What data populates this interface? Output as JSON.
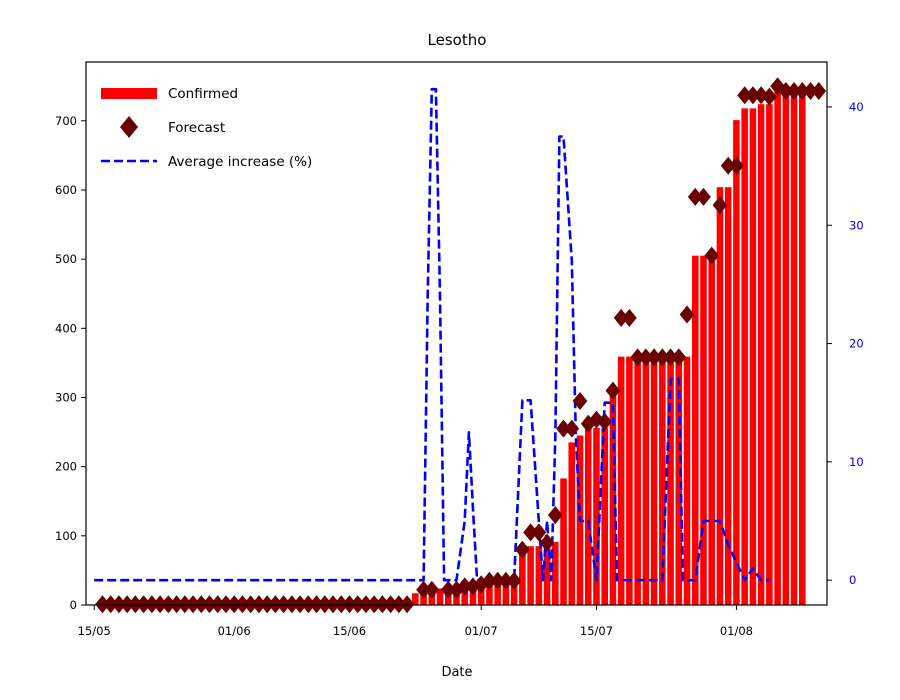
{
  "chart_data": {
    "type": "bar",
    "title": "Lesotho",
    "xlabel": "Date",
    "ylabel": "",
    "y2label": "",
    "x_ticks": [
      {
        "date": "2020-05-15",
        "label": "15/05"
      },
      {
        "date": "2020-06-01",
        "label": "01/06"
      },
      {
        "date": "2020-06-15",
        "label": "15/06"
      },
      {
        "date": "2020-07-01",
        "label": "01/07"
      },
      {
        "date": "2020-07-15",
        "label": "15/07"
      },
      {
        "date": "2020-08-01",
        "label": "01/08"
      }
    ],
    "xlim": [
      "2020-05-14",
      "2020-08-12"
    ],
    "ylim": [
      0,
      785
    ],
    "y_ticks": [
      0,
      100,
      200,
      300,
      400,
      500,
      600,
      700
    ],
    "y2lim": [
      -2.1,
      43.8
    ],
    "y2_ticks": [
      0,
      10,
      20,
      30,
      40
    ],
    "legend_position": "top-left",
    "colors": {
      "confirmed": "#ff0000",
      "forecast": "#6b0000",
      "average": "#0000ff",
      "right_axis": "#0000ff"
    },
    "legend": [
      {
        "label": "Confirmed",
        "style": "bar"
      },
      {
        "label": "Forecast",
        "style": "diamond"
      },
      {
        "label": "Average increase (%)",
        "style": "dashed-line"
      }
    ],
    "series": [
      {
        "name": "Confirmed",
        "type": "bar",
        "axis": "left",
        "data": [
          [
            "2020-05-16",
            1
          ],
          [
            "2020-05-17",
            1
          ],
          [
            "2020-05-18",
            1
          ],
          [
            "2020-05-19",
            1
          ],
          [
            "2020-05-20",
            1
          ],
          [
            "2020-05-21",
            1
          ],
          [
            "2020-05-22",
            1
          ],
          [
            "2020-05-23",
            1
          ],
          [
            "2020-05-24",
            1
          ],
          [
            "2020-05-25",
            1
          ],
          [
            "2020-05-26",
            1
          ],
          [
            "2020-05-27",
            1
          ],
          [
            "2020-05-28",
            1
          ],
          [
            "2020-05-29",
            1
          ],
          [
            "2020-05-30",
            1
          ],
          [
            "2020-05-31",
            1
          ],
          [
            "2020-06-01",
            1
          ],
          [
            "2020-06-02",
            1
          ],
          [
            "2020-06-03",
            2
          ],
          [
            "2020-06-04",
            2
          ],
          [
            "2020-06-05",
            2
          ],
          [
            "2020-06-06",
            2
          ],
          [
            "2020-06-07",
            2
          ],
          [
            "2020-06-08",
            2
          ],
          [
            "2020-06-09",
            2
          ],
          [
            "2020-06-10",
            2
          ],
          [
            "2020-06-11",
            2
          ],
          [
            "2020-06-12",
            2
          ],
          [
            "2020-06-13",
            2
          ],
          [
            "2020-06-14",
            4
          ],
          [
            "2020-06-15",
            4
          ],
          [
            "2020-06-16",
            4
          ],
          [
            "2020-06-17",
            4
          ],
          [
            "2020-06-18",
            4
          ],
          [
            "2020-06-19",
            4
          ],
          [
            "2020-06-20",
            4
          ],
          [
            "2020-06-21",
            4
          ],
          [
            "2020-06-22",
            4
          ],
          [
            "2020-06-23",
            17
          ],
          [
            "2020-06-24",
            17
          ],
          [
            "2020-06-25",
            17
          ],
          [
            "2020-06-26",
            24
          ],
          [
            "2020-06-27",
            24
          ],
          [
            "2020-06-28",
            27
          ],
          [
            "2020-06-29",
            27
          ],
          [
            "2020-06-30",
            27
          ],
          [
            "2020-07-01",
            27
          ],
          [
            "2020-07-02",
            35
          ],
          [
            "2020-07-03",
            35
          ],
          [
            "2020-07-04",
            35
          ],
          [
            "2020-07-05",
            35
          ],
          [
            "2020-07-06",
            85
          ],
          [
            "2020-07-07",
            85
          ],
          [
            "2020-07-08",
            85
          ],
          [
            "2020-07-09",
            91
          ],
          [
            "2020-07-10",
            91
          ],
          [
            "2020-07-11",
            183
          ],
          [
            "2020-07-12",
            235
          ],
          [
            "2020-07-13",
            245
          ],
          [
            "2020-07-14",
            256
          ],
          [
            "2020-07-15",
            256
          ],
          [
            "2020-07-16",
            256
          ],
          [
            "2020-07-17",
            310
          ],
          [
            "2020-07-18",
            359
          ],
          [
            "2020-07-19",
            359
          ],
          [
            "2020-07-20",
            359
          ],
          [
            "2020-07-21",
            359
          ],
          [
            "2020-07-22",
            359
          ],
          [
            "2020-07-23",
            359
          ],
          [
            "2020-07-24",
            359
          ],
          [
            "2020-07-25",
            359
          ],
          [
            "2020-07-26",
            359
          ],
          [
            "2020-07-27",
            505
          ],
          [
            "2020-07-28",
            505
          ],
          [
            "2020-07-29",
            505
          ],
          [
            "2020-07-30",
            604
          ],
          [
            "2020-07-31",
            604
          ],
          [
            "2020-08-01",
            701
          ],
          [
            "2020-08-02",
            718
          ],
          [
            "2020-08-03",
            718
          ],
          [
            "2020-08-04",
            724
          ],
          [
            "2020-08-05",
            724
          ],
          [
            "2020-08-06",
            742
          ],
          [
            "2020-08-07",
            742
          ],
          [
            "2020-08-08",
            742
          ],
          [
            "2020-08-09",
            742
          ]
        ]
      },
      {
        "name": "Forecast",
        "type": "scatter",
        "marker": "diamond",
        "axis": "left",
        "data": [
          [
            "2020-05-16",
            1
          ],
          [
            "2020-05-17",
            1
          ],
          [
            "2020-05-18",
            1
          ],
          [
            "2020-05-19",
            1
          ],
          [
            "2020-05-20",
            1
          ],
          [
            "2020-05-21",
            1
          ],
          [
            "2020-05-22",
            1
          ],
          [
            "2020-05-23",
            1
          ],
          [
            "2020-05-24",
            1
          ],
          [
            "2020-05-25",
            1
          ],
          [
            "2020-05-26",
            1
          ],
          [
            "2020-05-27",
            1
          ],
          [
            "2020-05-28",
            1
          ],
          [
            "2020-05-29",
            1
          ],
          [
            "2020-05-30",
            1
          ],
          [
            "2020-05-31",
            1
          ],
          [
            "2020-06-01",
            1
          ],
          [
            "2020-06-02",
            1
          ],
          [
            "2020-06-03",
            1
          ],
          [
            "2020-06-04",
            1
          ],
          [
            "2020-06-05",
            1
          ],
          [
            "2020-06-06",
            1
          ],
          [
            "2020-06-07",
            1
          ],
          [
            "2020-06-08",
            1
          ],
          [
            "2020-06-09",
            1
          ],
          [
            "2020-06-10",
            1
          ],
          [
            "2020-06-11",
            1
          ],
          [
            "2020-06-12",
            1
          ],
          [
            "2020-06-13",
            1
          ],
          [
            "2020-06-14",
            1
          ],
          [
            "2020-06-15",
            1
          ],
          [
            "2020-06-16",
            1
          ],
          [
            "2020-06-17",
            1
          ],
          [
            "2020-06-18",
            1
          ],
          [
            "2020-06-19",
            1
          ],
          [
            "2020-06-20",
            1
          ],
          [
            "2020-06-21",
            1
          ],
          [
            "2020-06-22",
            1
          ],
          [
            "2020-06-24",
            22
          ],
          [
            "2020-06-25",
            22
          ],
          [
            "2020-06-27",
            22
          ],
          [
            "2020-06-28",
            22
          ],
          [
            "2020-06-29",
            27
          ],
          [
            "2020-06-30",
            27
          ],
          [
            "2020-07-01",
            30
          ],
          [
            "2020-07-02",
            35
          ],
          [
            "2020-07-03",
            35
          ],
          [
            "2020-07-04",
            35
          ],
          [
            "2020-07-05",
            35
          ],
          [
            "2020-07-06",
            80
          ],
          [
            "2020-07-07",
            105
          ],
          [
            "2020-07-08",
            105
          ],
          [
            "2020-07-09",
            90
          ],
          [
            "2020-07-10",
            130
          ],
          [
            "2020-07-11",
            255
          ],
          [
            "2020-07-12",
            255
          ],
          [
            "2020-07-13",
            295
          ],
          [
            "2020-07-14",
            262
          ],
          [
            "2020-07-15",
            268
          ],
          [
            "2020-07-16",
            265
          ],
          [
            "2020-07-17",
            310
          ],
          [
            "2020-07-18",
            415
          ],
          [
            "2020-07-19",
            415
          ],
          [
            "2020-07-20",
            358
          ],
          [
            "2020-07-21",
            358
          ],
          [
            "2020-07-22",
            358
          ],
          [
            "2020-07-23",
            358
          ],
          [
            "2020-07-24",
            358
          ],
          [
            "2020-07-25",
            358
          ],
          [
            "2020-07-26",
            420
          ],
          [
            "2020-07-27",
            590
          ],
          [
            "2020-07-28",
            590
          ],
          [
            "2020-07-29",
            505
          ],
          [
            "2020-07-30",
            578
          ],
          [
            "2020-07-31",
            635
          ],
          [
            "2020-08-01",
            635
          ],
          [
            "2020-08-02",
            737
          ],
          [
            "2020-08-03",
            737
          ],
          [
            "2020-08-04",
            737
          ],
          [
            "2020-08-05",
            735
          ],
          [
            "2020-08-06",
            750
          ],
          [
            "2020-08-07",
            743
          ],
          [
            "2020-08-08",
            743
          ],
          [
            "2020-08-09",
            743
          ],
          [
            "2020-08-10",
            743
          ],
          [
            "2020-08-11",
            743
          ]
        ]
      },
      {
        "name": "Average increase (%)",
        "type": "line",
        "style": "dashed",
        "axis": "right",
        "data": [
          [
            "2020-05-15",
            0
          ],
          [
            "2020-06-24",
            0
          ],
          [
            "2020-06-24T12:00",
            24
          ],
          [
            "2020-06-25",
            41.5
          ],
          [
            "2020-06-25T12:00",
            41.5
          ],
          [
            "2020-06-26",
            24
          ],
          [
            "2020-06-26T12:00",
            0
          ],
          [
            "2020-06-28",
            0
          ],
          [
            "2020-06-29",
            5
          ],
          [
            "2020-06-29T12:00",
            12.5
          ],
          [
            "2020-06-30",
            6
          ],
          [
            "2020-06-30T12:00",
            0
          ],
          [
            "2020-07-05",
            0
          ],
          [
            "2020-07-06",
            15.2
          ],
          [
            "2020-07-07",
            15.2
          ],
          [
            "2020-07-08",
            5
          ],
          [
            "2020-07-08T12:00",
            0
          ],
          [
            "2020-07-09",
            5
          ],
          [
            "2020-07-09T12:00",
            0
          ],
          [
            "2020-07-10",
            12
          ],
          [
            "2020-07-10T12:00",
            37.5
          ],
          [
            "2020-07-11",
            37.5
          ],
          [
            "2020-07-12",
            27
          ],
          [
            "2020-07-12T12:00",
            12
          ],
          [
            "2020-07-13",
            5
          ],
          [
            "2020-07-14",
            5
          ],
          [
            "2020-07-15",
            0
          ],
          [
            "2020-07-16",
            15
          ],
          [
            "2020-07-17",
            15
          ],
          [
            "2020-07-17T12:00",
            0
          ],
          [
            "2020-07-19",
            0
          ],
          [
            "2020-07-20",
            0
          ],
          [
            "2020-07-22",
            0
          ],
          [
            "2020-07-23",
            0
          ],
          [
            "2020-07-24",
            17
          ],
          [
            "2020-07-25",
            17
          ],
          [
            "2020-07-25T12:00",
            0
          ],
          [
            "2020-07-27",
            0
          ],
          [
            "2020-07-28",
            5
          ],
          [
            "2020-07-30",
            5
          ],
          [
            "2020-07-31",
            3
          ],
          [
            "2020-08-02",
            0
          ],
          [
            "2020-08-03",
            1
          ],
          [
            "2020-08-04",
            0
          ],
          [
            "2020-08-05",
            0
          ]
        ]
      }
    ]
  }
}
